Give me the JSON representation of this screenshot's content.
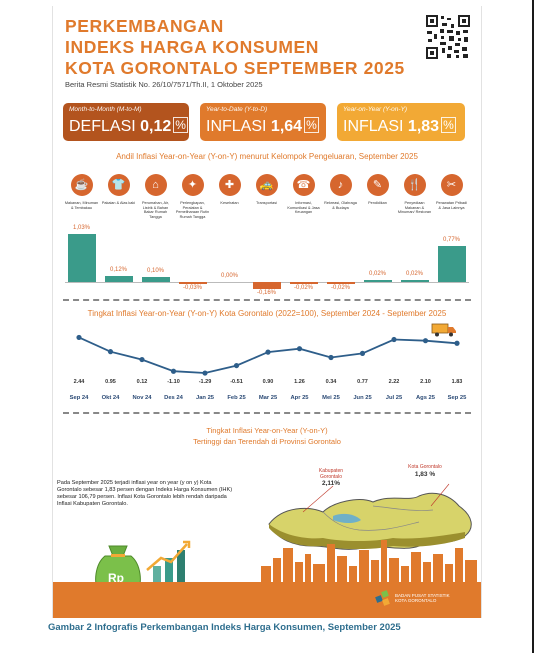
{
  "header": {
    "title_lines": [
      "PERKEMBANGAN",
      "INDEKS HARGA KONSUMEN",
      "KOTA GORONTALO SEPTEMBER 2025"
    ],
    "subtitle": "Berita Resmi Statistik No. 26/10/7571/Th.II, 1 Oktober 2025"
  },
  "summary_boxes": [
    {
      "label": "Month-to-Month (M-to-M)",
      "word": "DEFLASI",
      "value": "0,12",
      "unit": "%",
      "color": "#b3541e"
    },
    {
      "label": "Year-to-Date (Y-to-D)",
      "word": "INFLASI",
      "value": "1,64",
      "unit": "%",
      "color": "#e07a2c"
    },
    {
      "label": "Year-on-Year (Y-on-Y)",
      "word": "INFLASI",
      "value": "1,83",
      "unit": "%",
      "color": "#f2a935"
    }
  ],
  "section1": {
    "title": "Andil Inflasi Year-on-Year (Y-on-Y) menurut Kelompok Pengeluaran, September 2025"
  },
  "section2": {
    "title": "Tingkat Inflasi Year-on-Year (Y-on-Y) Kota Gorontalo (2022=100), September 2024 - September 2025"
  },
  "section3": {
    "title_line1": "Tingkat Inflasi Year-on-Year (Y-on-Y)",
    "title_line2": "Tertinggi dan Terendah di Provinsi Gorontalo"
  },
  "note_text": "Pada September 2025 terjadi inflasi year on year (y on y) Kota Gorontalo sebesar 1,83 persen dengan Indeks Harga Konsumen (IHK) sebesar 106,79 persen. Inflasi Kota Gorontalo lebih rendah daripada Inflasi Kabupaten Gorontalo.",
  "callouts": [
    {
      "name": "Kabupaten Gorontalo",
      "value": "2,11%"
    },
    {
      "name": "Kota Gorontalo",
      "value": "1,83 %"
    }
  ],
  "footer": {
    "org_line1": "BADAN PUSAT STATISTIK",
    "org_line2": "KOTA GORONTALO",
    "rp_label": "Rp"
  },
  "caption": "Gambar 2   Infografis Perkembangan Indeks Harga Konsumen, September 2025",
  "colors": {
    "orange": "#e07a2c",
    "teal": "#3a9b8a",
    "dark_orange": "#d6662e",
    "line": "#2e5e8a"
  },
  "icons": [
    "food-icon",
    "clothing-icon",
    "house-icon",
    "furniture-icon",
    "health-icon",
    "transport-icon",
    "phone-icon",
    "recreation-icon",
    "education-icon",
    "restaurant-icon",
    "personal-care-icon"
  ],
  "chart_data": [
    {
      "type": "bar",
      "title": "Andil Inflasi Year-on-Year (Y-on-Y) menurut Kelompok Pengeluaran, September 2025",
      "categories": [
        "Makanan, Minuman & Tembakau",
        "Pakaian & Alas kaki",
        "Perumahan, Air, Listrik & Bahan Bakar Rumah Tangga",
        "Perlengkapan, Peralatan & Pemeliharaan Rutin Rumah Tangga",
        "Kesehatan",
        "Transportasi",
        "Informasi, Komunikasi & Jasa Keuangan",
        "Rekreasi, Olahraga & Budaya",
        "Pendidikan",
        "Penyediaan Makanan & Minuman/ Restoran",
        "Perawatan Pribadi & Jasa Lainnya"
      ],
      "values": [
        1.03,
        0.12,
        0.1,
        -0.03,
        0.0,
        -0.16,
        -0.02,
        -0.02,
        0.02,
        0.02,
        0.77
      ],
      "value_labels": [
        "1,03%",
        "0,12%",
        "0,10%",
        "-0,03%",
        "0,00%",
        "-0,16%",
        "-0,02%",
        "-0,02%",
        "0,02%",
        "0,02%",
        "0,77%"
      ]
    },
    {
      "type": "line",
      "title": "Tingkat Inflasi Year-on-Year (Y-on-Y) Kota Gorontalo (2022=100), September 2024 - September 2025",
      "x": [
        "Sep 24",
        "Okt 24",
        "Nov 24",
        "Des 24",
        "Jan 25",
        "Feb 25",
        "Mar 25",
        "Apr 25",
        "Mei 25",
        "Jun 25",
        "Jul 25",
        "Ags 25",
        "Sep 25"
      ],
      "values": [
        2.44,
        0.95,
        0.12,
        -1.1,
        -1.29,
        -0.51,
        0.9,
        1.26,
        0.34,
        0.77,
        2.22,
        2.1,
        1.83
      ],
      "value_labels": [
        "2.44",
        "0.95",
        "0.12",
        "-1.10",
        "-1.29",
        "-0.51",
        "0.90",
        "1.26",
        "0.34",
        "0.77",
        "2.22",
        "2.10",
        "1.83"
      ]
    }
  ]
}
